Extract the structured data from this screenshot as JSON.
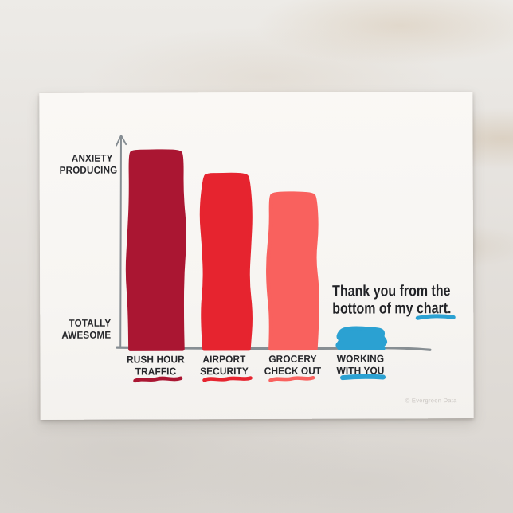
{
  "postcard": {
    "message": {
      "line1": "Thank you from the",
      "line2": "bottom of my chart."
    },
    "watermark": "© Evergreen Data"
  },
  "chart_data": {
    "type": "bar",
    "title": "Thank you from the bottom of my chart.",
    "categories": [
      "RUSH HOUR TRAFFIC",
      "AIRPORT SECURITY",
      "GROCERY CHECK OUT",
      "WORKING WITH YOU"
    ],
    "category_lines": [
      {
        "line1": "RUSH HOUR",
        "line2": "TRAFFIC"
      },
      {
        "line1": "AIRPORT",
        "line2": "SECURITY"
      },
      {
        "line1": "GROCERY",
        "line2": "CHECK OUT"
      },
      {
        "line1": "WORKING",
        "line2": "WITH YOU"
      }
    ],
    "values": [
      92,
      81,
      72,
      9
    ],
    "ylim": [
      0,
      100
    ],
    "ylabel_top": {
      "line1": "ANXIETY",
      "line2": "PRODUCING"
    },
    "ylabel_bottom": {
      "line1": "TOTALLY",
      "line2": "AWESOME"
    },
    "colors": [
      "#aa1632",
      "#e6242f",
      "#f9615e",
      "#2ba1d2"
    ],
    "axis_color": "#878e93",
    "accent_blue": "#2ba1d2",
    "grid": false,
    "legend": false,
    "xlabel": "",
    "ylabel": ""
  }
}
